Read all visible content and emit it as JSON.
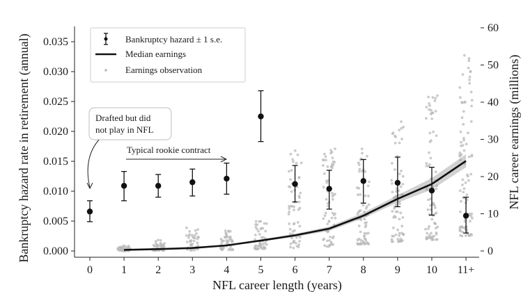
{
  "chart_data": {
    "type": "scatter",
    "xlabel": "NFL career length (years)",
    "ylabel_left": "Bankruptcy hazard rate in retirement (annual)",
    "ylabel_right": "NFL career earnings (millions)",
    "categories": [
      "0",
      "1",
      "2",
      "3",
      "4",
      "5",
      "6",
      "7",
      "8",
      "9",
      "10",
      "11+"
    ],
    "left_yticks": [
      "0.000",
      "0.005",
      "0.010",
      "0.015",
      "0.020",
      "0.025",
      "0.030",
      "0.035"
    ],
    "right_yticks": [
      "0",
      "10",
      "20",
      "30",
      "40",
      "50",
      "60"
    ],
    "ylim_left": [
      0,
      0.0375
    ],
    "ylim_right": [
      0,
      60
    ],
    "legend": {
      "placement": "top-left",
      "hazard_label": "Bankruptcy hazard ± 1 s.e.",
      "median_label": "Median earnings",
      "obs_label": "Earnings observation"
    },
    "annotations": {
      "drafted_line1": "Drafted but did",
      "drafted_line2": "not play in NFL",
      "rookie": "Typical rookie contract"
    },
    "series": [
      {
        "name": "Bankruptcy hazard ± 1 s.e.",
        "axis": "left",
        "values": [
          0.0066,
          0.0109,
          0.0109,
          0.0115,
          0.0121,
          0.0225,
          0.0112,
          0.0104,
          0.0117,
          0.0114,
          0.0101,
          0.0059
        ],
        "lower": [
          0.0049,
          0.0084,
          0.009,
          0.0092,
          0.0095,
          0.0183,
          0.0082,
          0.007,
          0.008,
          0.0074,
          0.006,
          0.003
        ],
        "upper": [
          0.0084,
          0.0133,
          0.0128,
          0.0137,
          0.0147,
          0.0268,
          0.0143,
          0.0135,
          0.0153,
          0.0157,
          0.014,
          0.009
        ]
      },
      {
        "name": "Median earnings",
        "axis": "right",
        "x": [
          1,
          2,
          3,
          4,
          5,
          6,
          7,
          8,
          9,
          10,
          11
        ],
        "values": [
          0.3,
          0.5,
          0.8,
          1.5,
          2.8,
          4.2,
          6.0,
          9.5,
          14.0,
          18.0,
          24.2
        ],
        "band_lower": [
          0.2,
          0.4,
          0.7,
          1.3,
          2.5,
          3.8,
          5.4,
          8.8,
          13.0,
          16.5,
          22.5
        ],
        "band_upper": [
          0.4,
          0.6,
          1.0,
          1.7,
          3.1,
          4.6,
          6.6,
          10.3,
          15.0,
          19.6,
          26.0
        ]
      }
    ],
    "observations": {
      "name": "Earnings observation",
      "axis": "right",
      "x": [
        1,
        2,
        3,
        4,
        5,
        6,
        7,
        8,
        9,
        10,
        11
      ],
      "min": [
        0.0,
        0.1,
        0.2,
        0.3,
        0.5,
        0.8,
        1.2,
        1.8,
        2.5,
        3.0,
        4.0
      ],
      "max": [
        1.5,
        3.0,
        6.5,
        5.5,
        8.5,
        29.0,
        28.0,
        28.5,
        35.0,
        44.0,
        54.0
      ],
      "counts": [
        45,
        45,
        45,
        45,
        50,
        60,
        65,
        70,
        75,
        80,
        90
      ]
    }
  }
}
